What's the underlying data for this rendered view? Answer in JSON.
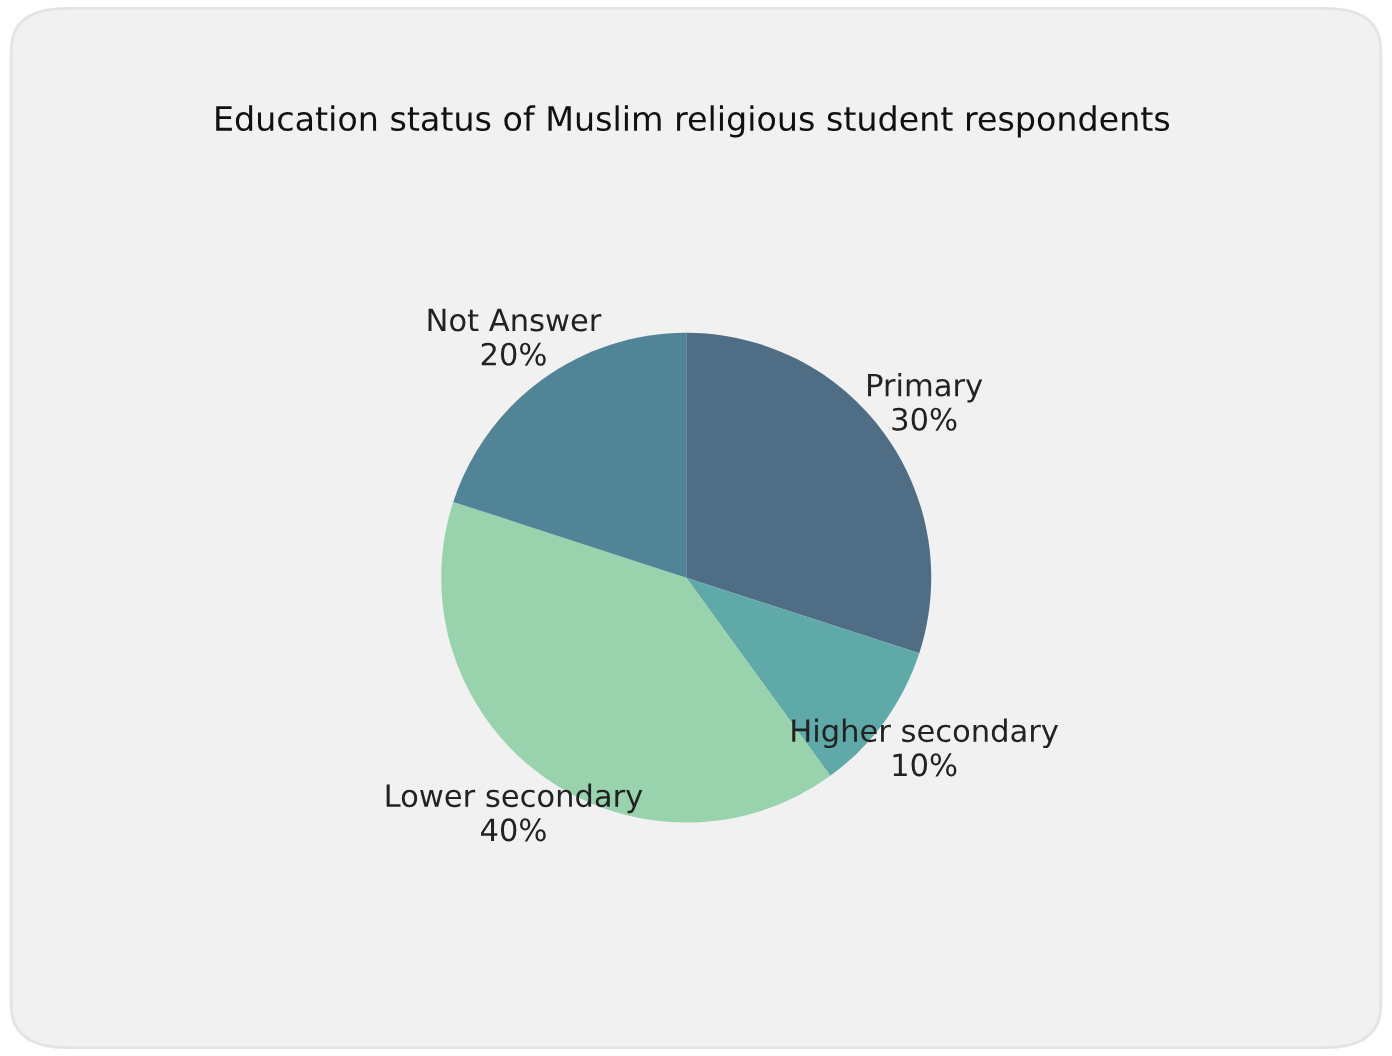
{
  "chart_data": {
    "type": "pie",
    "title": "Education status of Muslim religious student respondents",
    "categories": [
      "Primary",
      "Higher secondary",
      "Lower secondary",
      "Not Answer"
    ],
    "values": [
      30,
      10,
      40,
      20
    ],
    "value_labels": [
      "30%",
      "10%",
      "40%",
      "20%"
    ],
    "colors": [
      "#4f6d84",
      "#5faaa9",
      "#99d3ae",
      "#508496"
    ],
    "legend": false
  }
}
